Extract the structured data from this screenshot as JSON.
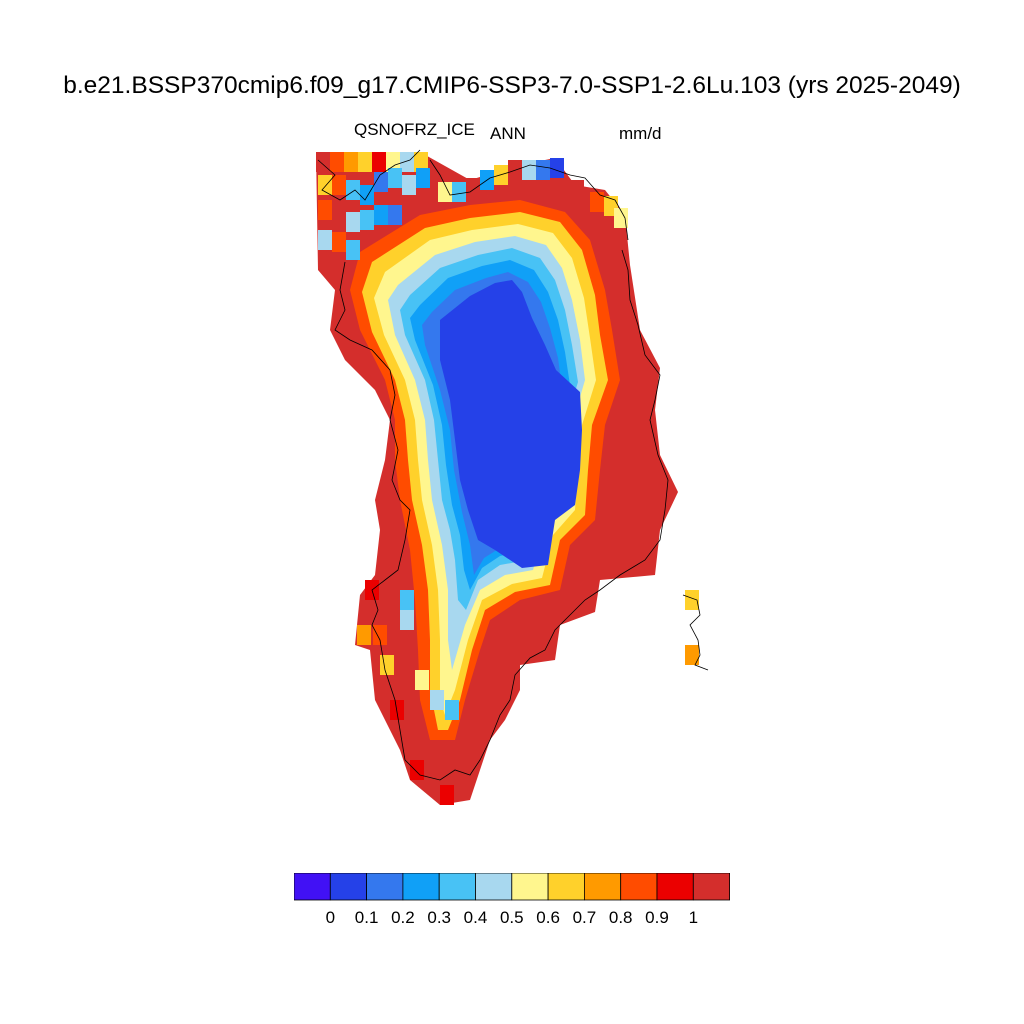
{
  "figure": {
    "title": "b.e21.BSSP370cmip6.f09_g17.CMIP6-SSP3-7.0-SSP1-2.6Lu.103 (yrs 2025-2049)",
    "variable": "QSNOFRZ_ICE",
    "season": "ANN",
    "units": "mm/d"
  },
  "colorbar": {
    "colors": [
      "#4111f5",
      "#2541e8",
      "#3478ee",
      "#10a0f7",
      "#48c2f5",
      "#a8d8ef",
      "#fff68e",
      "#ffd12b",
      "#ff9a00",
      "#ff4c00",
      "#eb0000",
      "#d42e2c"
    ],
    "labels": [
      "0",
      "0.1",
      "0.2",
      "0.3",
      "0.4",
      "0.5",
      "0.6",
      "0.7",
      "0.8",
      "0.9",
      "1"
    ]
  },
  "map": {
    "region": "Greenland",
    "field_description": "Ice sheet interior ~0.1 mm/d; margins >1 mm/d"
  }
}
